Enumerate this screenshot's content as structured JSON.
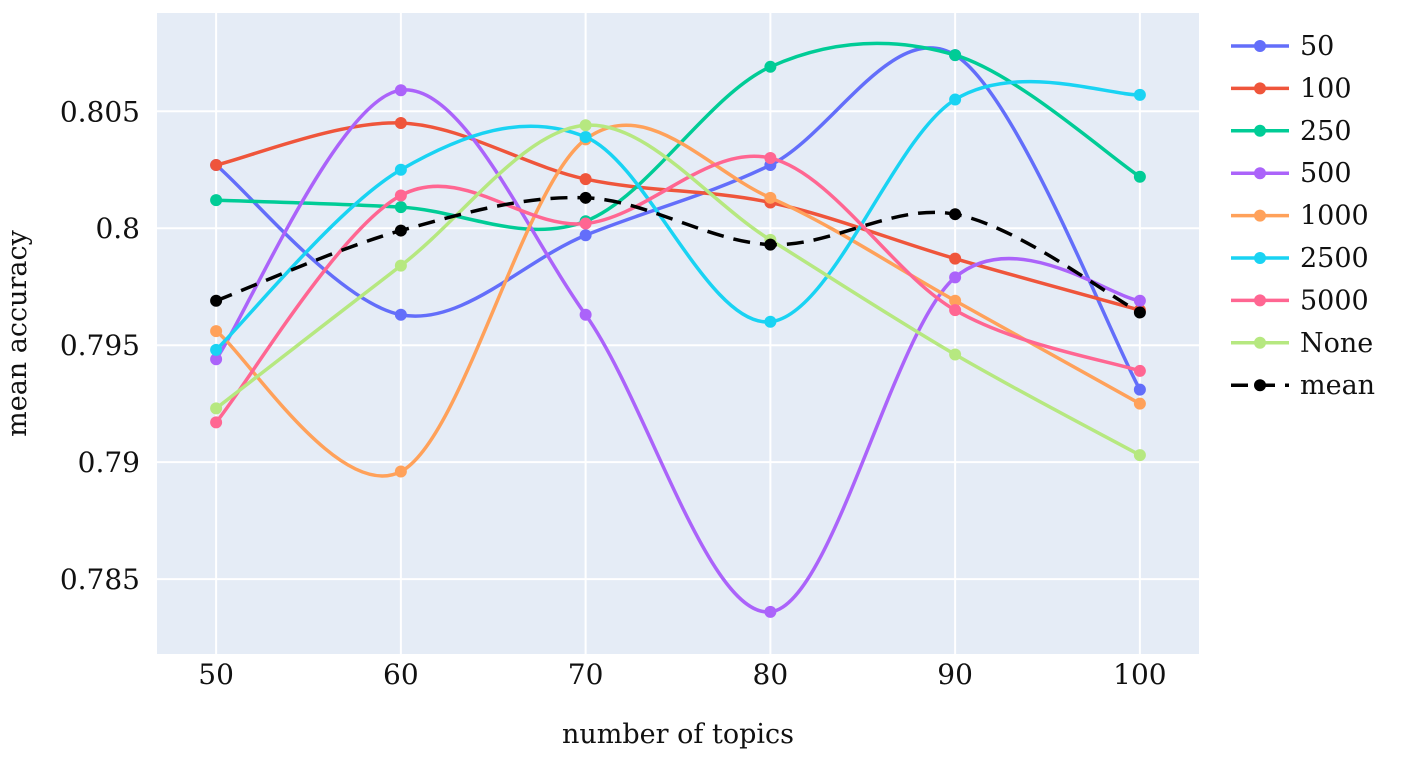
{
  "chart_data": {
    "type": "line",
    "xlabel": "number of topics",
    "ylabel": "mean accuracy",
    "x": [
      50,
      60,
      70,
      80,
      90,
      100
    ],
    "xlim": [
      46.8,
      103.2
    ],
    "ylim": [
      0.7818,
      0.8092
    ],
    "xticks": [
      {
        "value": 50,
        "label": "50"
      },
      {
        "value": 60,
        "label": "60"
      },
      {
        "value": 70,
        "label": "70"
      },
      {
        "value": 80,
        "label": "80"
      },
      {
        "value": 90,
        "label": "90"
      },
      {
        "value": 100,
        "label": "100"
      }
    ],
    "yticks": [
      {
        "value": 0.785,
        "label": "0.785"
      },
      {
        "value": 0.79,
        "label": "0.79"
      },
      {
        "value": 0.795,
        "label": "0.795"
      },
      {
        "value": 0.8,
        "label": "0.8"
      },
      {
        "value": 0.805,
        "label": "0.805"
      }
    ],
    "grid": true,
    "legend_position": "right",
    "plot_background": "#e5ecf6",
    "series": [
      {
        "name": "50",
        "color": "#636efa",
        "dash": "solid",
        "values": [
          0.8027,
          0.7963,
          0.7997,
          0.8027,
          0.8074,
          0.7931
        ]
      },
      {
        "name": "100",
        "color": "#ef553b",
        "dash": "solid",
        "values": [
          0.8027,
          0.8045,
          0.8021,
          0.8011,
          0.7987,
          0.7965
        ]
      },
      {
        "name": "250",
        "color": "#00cc96",
        "dash": "solid",
        "values": [
          0.8012,
          0.8009,
          0.8003,
          0.8069,
          0.8074,
          0.8022
        ]
      },
      {
        "name": "500",
        "color": "#ab63fa",
        "dash": "solid",
        "values": [
          0.7944,
          0.8059,
          0.7963,
          0.7836,
          0.7979,
          0.7969
        ]
      },
      {
        "name": "1000",
        "color": "#ffa15a",
        "dash": "solid",
        "values": [
          0.7956,
          0.7896,
          0.8038,
          0.8013,
          0.7969,
          0.7925
        ]
      },
      {
        "name": "2500",
        "color": "#19d3f3",
        "dash": "solid",
        "values": [
          0.7948,
          0.8025,
          0.8039,
          0.796,
          0.8055,
          0.8057
        ]
      },
      {
        "name": "5000",
        "color": "#ff6692",
        "dash": "solid",
        "values": [
          0.7917,
          0.8014,
          0.8002,
          0.803,
          0.7965,
          0.7939
        ]
      },
      {
        "name": "None",
        "color": "#b6e880",
        "dash": "solid",
        "values": [
          0.7923,
          0.7984,
          0.8044,
          0.7995,
          0.7946,
          0.7903
        ]
      },
      {
        "name": "mean",
        "color": "#000000",
        "dash": "dash",
        "values": [
          0.7969,
          0.7999,
          0.8013,
          0.7993,
          0.8006,
          0.7964
        ]
      }
    ]
  }
}
